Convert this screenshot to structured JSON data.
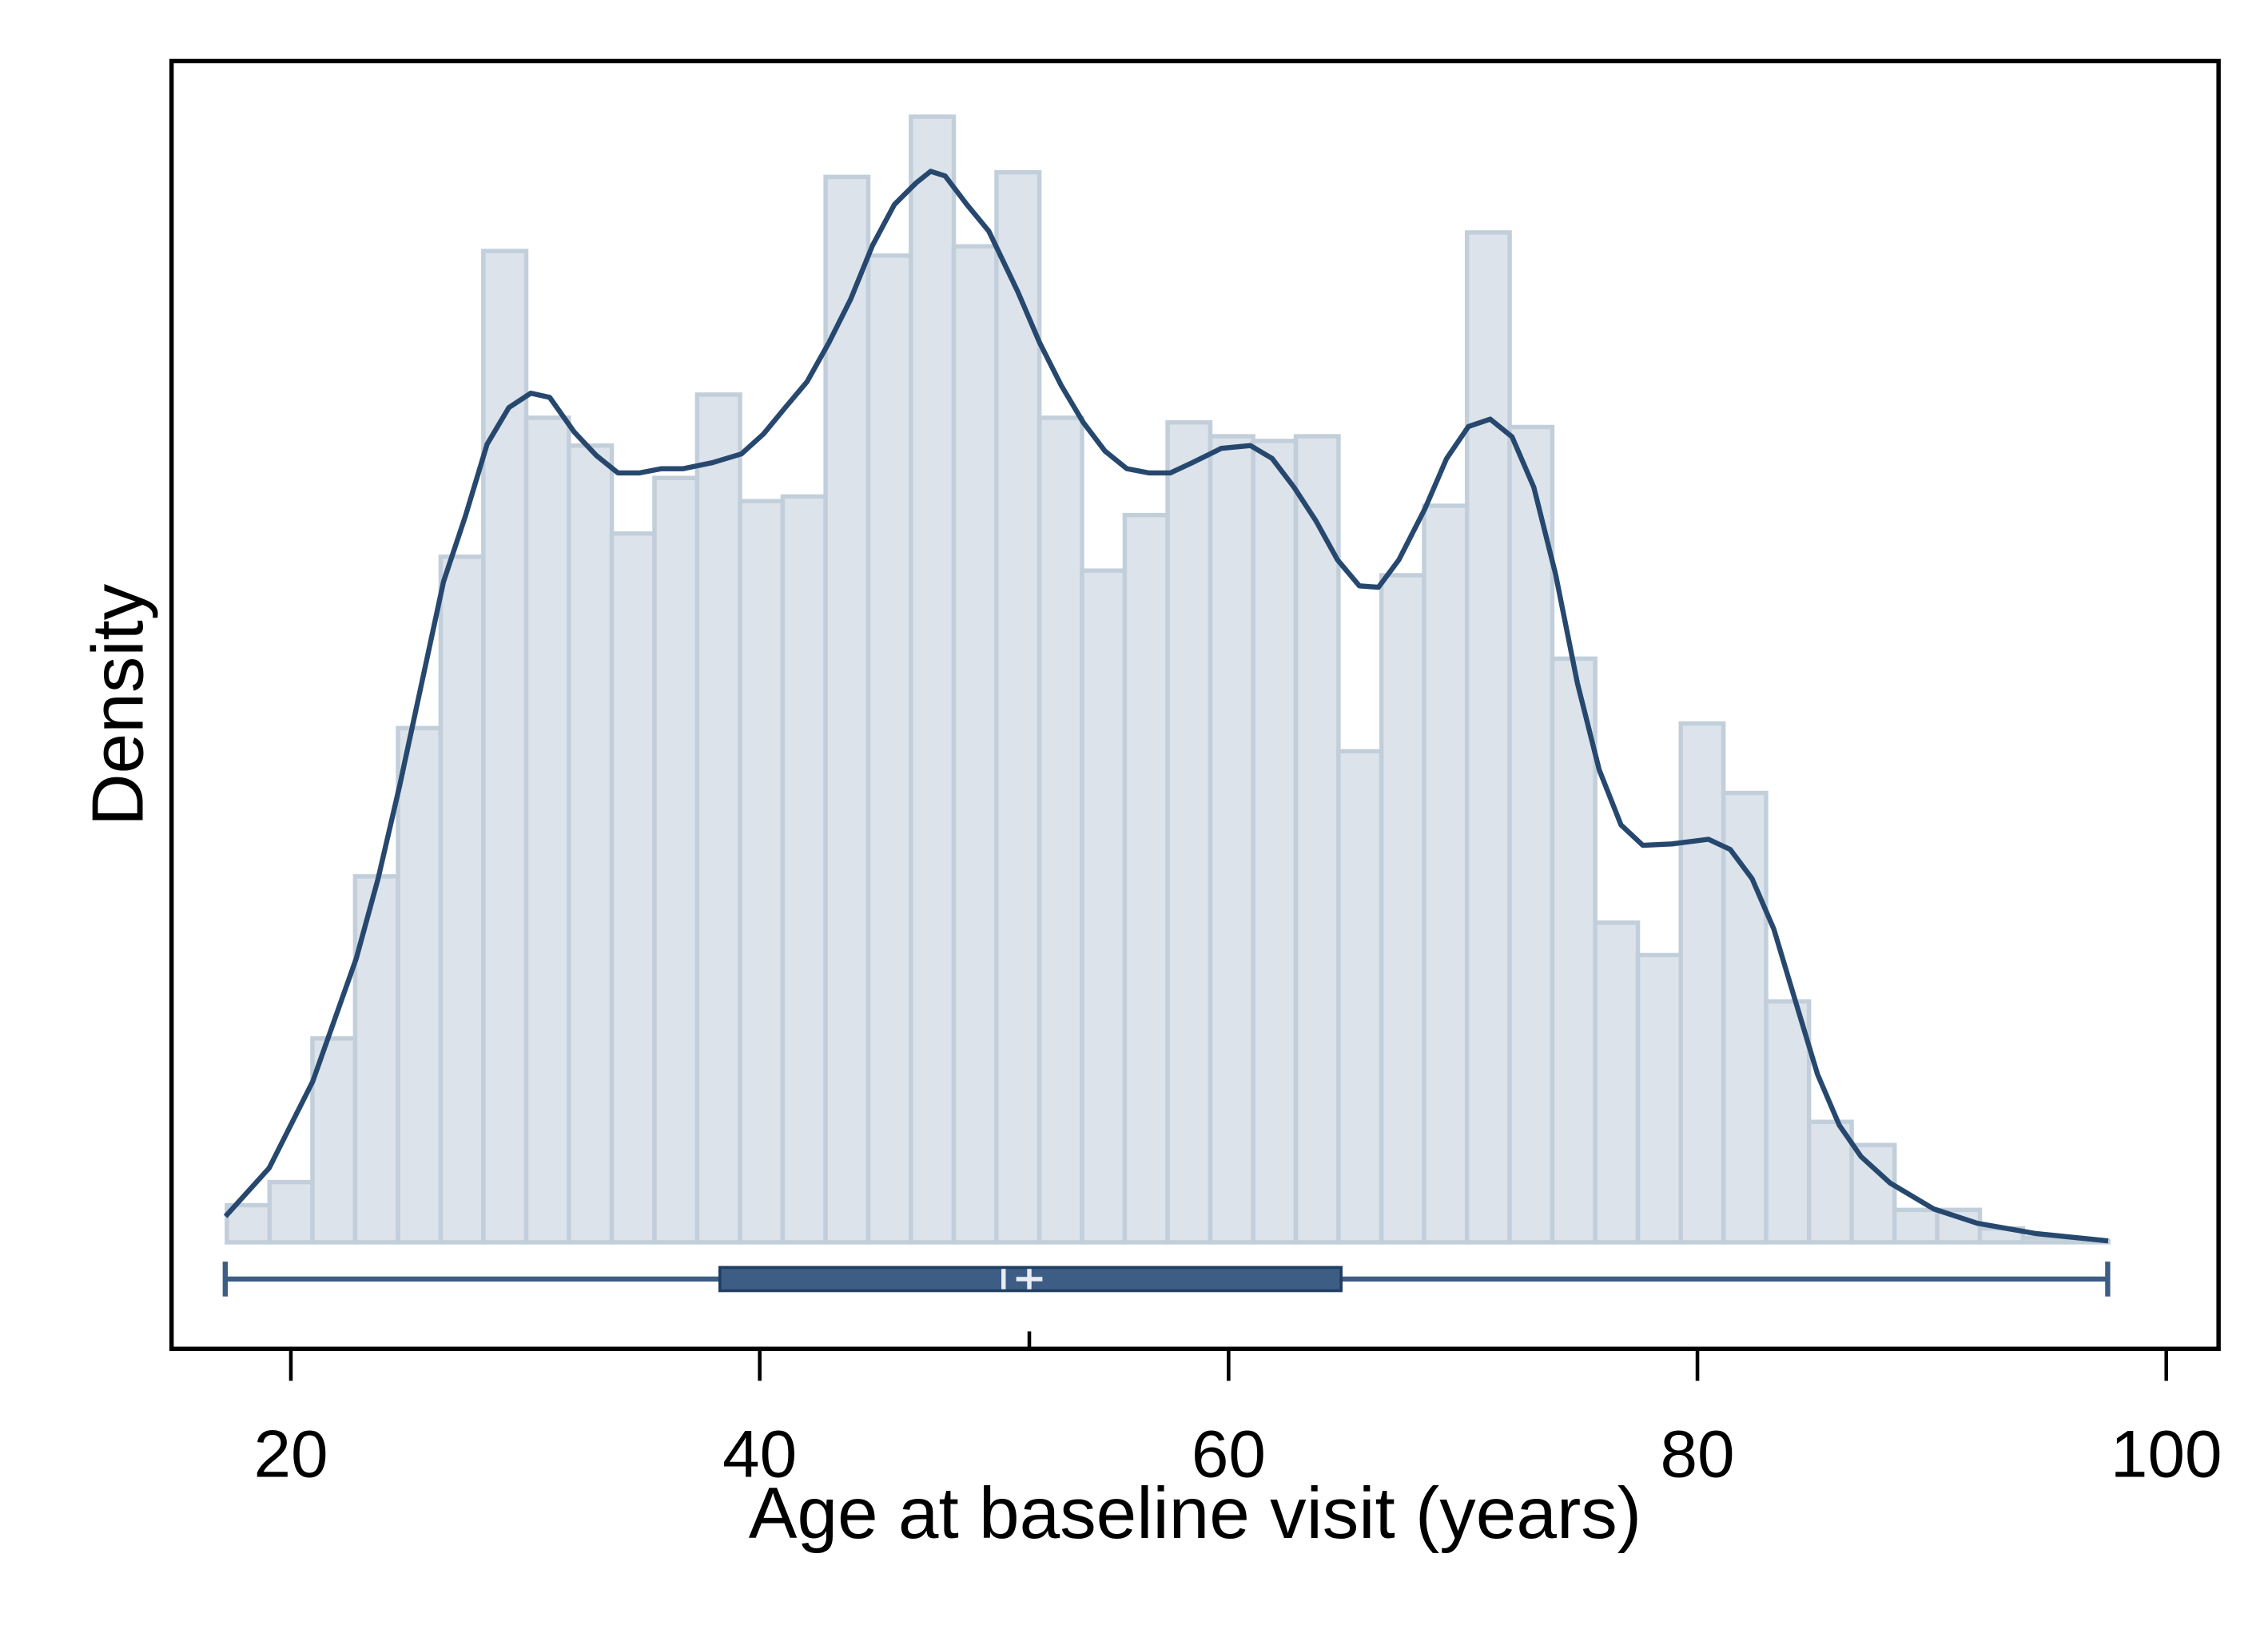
{
  "chart_data": {
    "type": "histogram",
    "xlabel": "Age at baseline visit (years)",
    "ylabel": "Density",
    "xlim": [
      14.91,
      102.23
    ],
    "xticks": [
      20,
      40,
      60,
      80,
      100
    ],
    "ylim": [
      -0.0023,
      0.0255
    ],
    "color": "#dce3ea",
    "edge_color": "#c2cfdb",
    "bins": [
      17.27,
      19.09,
      20.92,
      22.74,
      24.57,
      26.39,
      28.21,
      30.04,
      31.86,
      33.69,
      35.51,
      37.33,
      39.16,
      40.98,
      42.81,
      44.63,
      46.45,
      48.28,
      50.1,
      51.93,
      53.75,
      55.57,
      57.4,
      59.22,
      61.05,
      62.87,
      64.69,
      66.52,
      68.34,
      70.17,
      71.99,
      73.81,
      75.64,
      77.46,
      79.29,
      81.11,
      82.93,
      84.76,
      86.58,
      88.41,
      90.23,
      92.05,
      93.88,
      95.7,
      97.53
    ],
    "values": [
      0.0008,
      0.0013,
      0.0044,
      0.0079,
      0.0111,
      0.0148,
      0.0214,
      0.0178,
      0.0172,
      0.0153,
      0.0165,
      0.0183,
      0.016,
      0.0161,
      0.023,
      0.0213,
      0.0243,
      0.0215,
      0.0231,
      0.0178,
      0.0145,
      0.0157,
      0.0177,
      0.0174,
      0.0173,
      0.0174,
      0.0106,
      0.0144,
      0.0159,
      0.0218,
      0.0176,
      0.0126,
      0.0069,
      0.0062,
      0.0112,
      0.0097,
      0.0052,
      0.0026,
      0.0021,
      0.0007,
      0.0007,
      0.0003,
      0.0001,
      3e-05
    ],
    "density": {
      "color": "#27486e",
      "x": [
        17.21,
        19.07,
        20.93,
        22.79,
        23.72,
        24.65,
        25.58,
        26.51,
        27.44,
        28.37,
        29.3,
        30.23,
        31.04,
        32.09,
        33.02,
        33.95,
        34.88,
        35.81,
        36.74,
        37.98,
        39.22,
        40.16,
        41.09,
        42.02,
        42.95,
        43.88,
        44.81,
        45.74,
        46.67,
        47.29,
        47.91,
        48.84,
        49.77,
        51.01,
        51.94,
        52.87,
        53.8,
        54.73,
        55.66,
        56.59,
        57.52,
        58.45,
        59.69,
        60.93,
        61.86,
        62.79,
        63.72,
        64.65,
        65.58,
        66.39,
        67.26,
        68.37,
        69.3,
        70.23,
        71.16,
        72.09,
        73.02,
        73.95,
        74.88,
        75.81,
        76.74,
        77.67,
        78.91,
        80.47,
        81.4,
        82.33,
        83.26,
        84.19,
        85.12,
        86.05,
        86.98,
        88.22,
        90.08,
        91.94,
        94.42,
        97.52
      ],
      "y": [
        0.00056,
        0.0016,
        0.00347,
        0.00613,
        0.00785,
        0.00988,
        0.01207,
        0.01426,
        0.01567,
        0.01723,
        0.01802,
        0.01833,
        0.01824,
        0.01749,
        0.01699,
        0.01661,
        0.01661,
        0.0167,
        0.0167,
        0.01683,
        0.01702,
        0.01745,
        0.01802,
        0.01858,
        0.01942,
        0.02036,
        0.02152,
        0.0224,
        0.02287,
        0.02312,
        0.02302,
        0.0224,
        0.02183,
        0.02052,
        0.01942,
        0.01849,
        0.0177,
        0.01708,
        0.0167,
        0.01661,
        0.01661,
        0.01683,
        0.01714,
        0.0172,
        0.01692,
        0.0163,
        0.01558,
        0.01473,
        0.01417,
        0.01414,
        0.01473,
        0.01583,
        0.01692,
        0.01761,
        0.01777,
        0.01739,
        0.0163,
        0.01442,
        0.01207,
        0.0102,
        0.00901,
        0.00857,
        0.0086,
        0.0087,
        0.00848,
        0.00785,
        0.00676,
        0.00519,
        0.00363,
        0.00253,
        0.00185,
        0.00128,
        0.00072,
        0.00041,
        0.00019,
        3e-05
      ]
    },
    "boxplot": {
      "color": "#3d5d85",
      "min": 17.2,
      "q1": 38.3,
      "median": 50.4,
      "mean": 51.5,
      "q3": 64.8,
      "max": 97.5
    }
  }
}
